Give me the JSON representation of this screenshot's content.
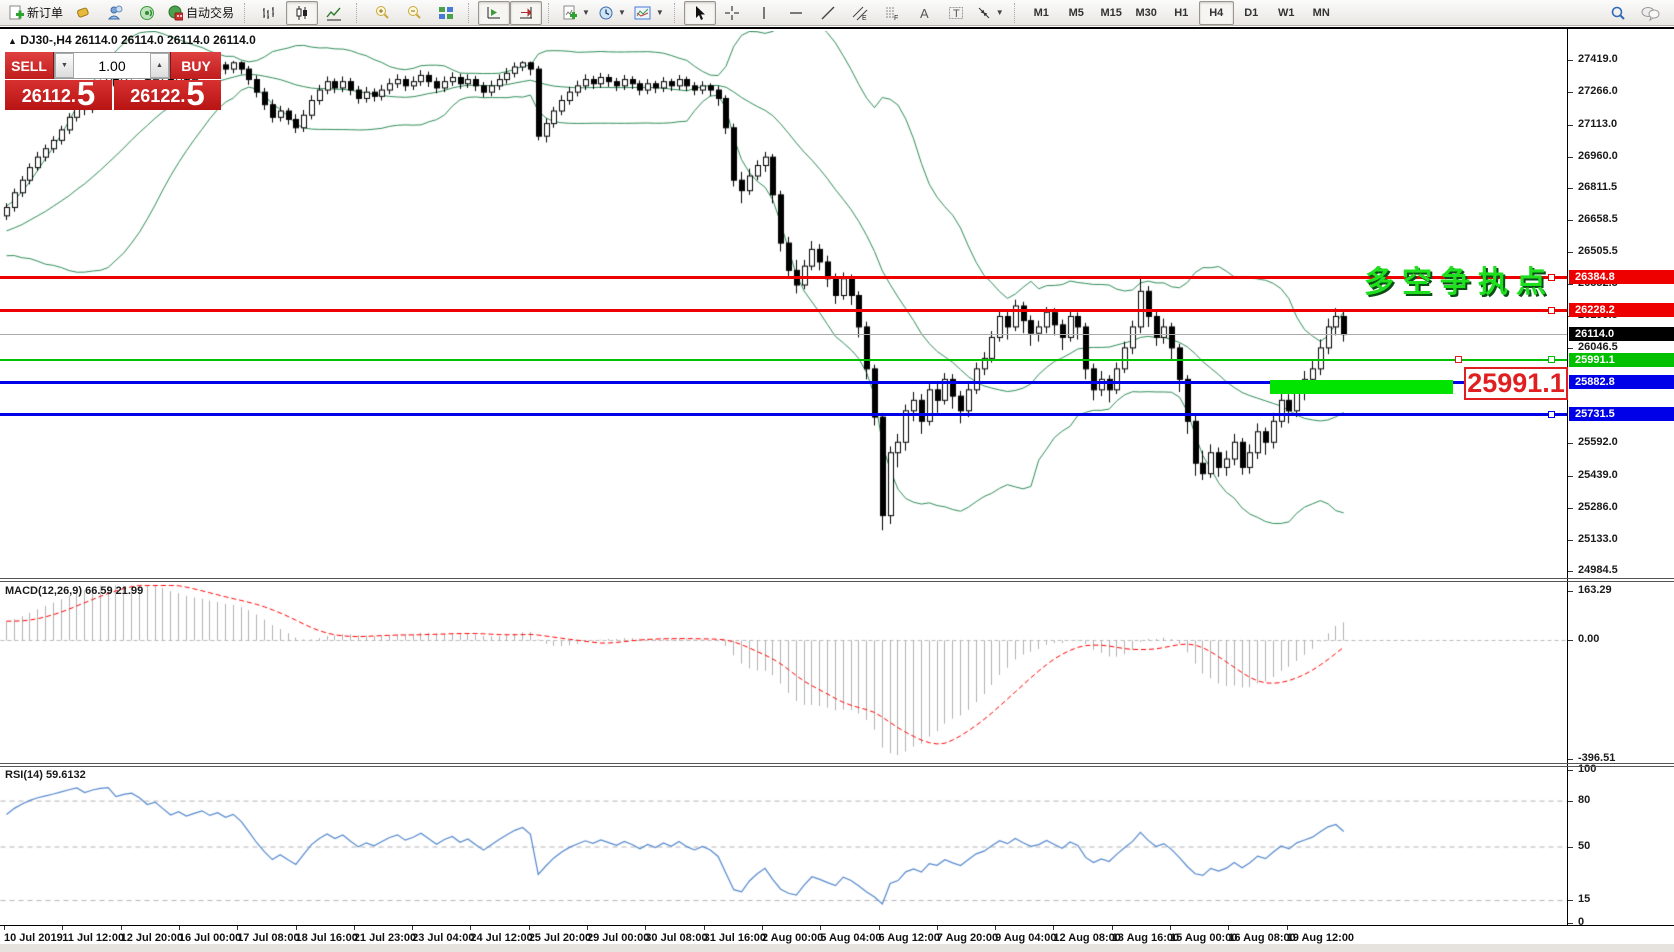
{
  "toolbar": {
    "new_order_label": "新订单",
    "autotrading_label": "自动交易",
    "timeframes": [
      "M1",
      "M5",
      "M15",
      "M30",
      "H1",
      "H4",
      "D1",
      "W1",
      "MN"
    ],
    "active_timeframe": "H4"
  },
  "trade_panel": {
    "sell_label": "SELL",
    "buy_label": "BUY",
    "volume": "1.00",
    "sell_price_main": "26112.",
    "sell_price_big": "5",
    "buy_price_main": "26122.",
    "buy_price_big": "5"
  },
  "chart": {
    "title_text": "DJ30-,H4  26114.0 26114.0 26114.0 26114.0",
    "collapse_arrow": "▲",
    "annotation": "多空争执点",
    "callout_label": "25991.1",
    "current_price": {
      "price": 26114.0,
      "label": "26114.0",
      "color": "#000000"
    },
    "lines": [
      {
        "price": 26384.8,
        "label": "26384.8",
        "color": "#ee0000",
        "thickness": 3
      },
      {
        "price": 26228.2,
        "label": "26228.2",
        "color": "#ee0000",
        "thickness": 3
      },
      {
        "price": 25991.1,
        "label": "25991.1",
        "color": "#00c000",
        "thickness": 2
      },
      {
        "price": 25882.8,
        "label": "25882.8",
        "color": "#0000e8",
        "thickness": 3
      },
      {
        "price": 25731.5,
        "label": "25731.5",
        "color": "#0000e8",
        "thickness": 3
      }
    ],
    "price_ticks": [
      "27419.0",
      "27266.0",
      "27113.0",
      "26960.0",
      "26811.5",
      "26658.5",
      "26505.5",
      "26352.5",
      "26199.5",
      "26046.5",
      "25592.0",
      "25439.0",
      "25286.0",
      "25133.0",
      "24984.5"
    ],
    "time_ticks": [
      "10 Jul 2019",
      "11 Jul 12:00",
      "12 Jul 20:00",
      "16 Jul 00:00",
      "17 Jul 08:00",
      "18 Jul 16:00",
      "21 Jul 23:00",
      "23 Jul 04:00",
      "24 Jul 12:00",
      "25 Jul 20:00",
      "29 Jul 00:00",
      "30 Jul 08:00",
      "31 Jul 16:00",
      "2 Aug 00:00",
      "5 Aug 04:00",
      "6 Aug 12:00",
      "7 Aug 20:00",
      "9 Aug 04:00",
      "12 Aug 08:00",
      "13 Aug 16:00",
      "15 Aug 00:00",
      "16 Aug 08:00",
      "19 Aug 12:00"
    ]
  },
  "macd_panel": {
    "label": "MACD(12,26,9) 66.59 21.99",
    "ticks": [
      {
        "v": 163.29,
        "label": "163.29"
      },
      {
        "v": 0,
        "label": "0.00"
      },
      {
        "v": -396.51,
        "label": "-396.51"
      }
    ]
  },
  "rsi_panel": {
    "label": "RSI(14) 59.6132",
    "ticks": [
      {
        "v": 100,
        "label": "100"
      },
      {
        "v": 80,
        "label": "80"
      },
      {
        "v": 50,
        "label": "50"
      },
      {
        "v": 15,
        "label": "15"
      },
      {
        "v": 0,
        "label": "0"
      }
    ],
    "levels": [
      80,
      50,
      15
    ]
  },
  "chart_data": {
    "type": "candlestick",
    "symbol": "DJ30-",
    "timeframe": "H4",
    "indicators": [
      "Bollinger Bands(20,2)",
      "MACD(12,26,9)",
      "RSI(14)"
    ],
    "price_axis_range": [
      24900,
      27560
    ],
    "macd_axis_range": [
      -406,
      193
    ],
    "rsi_axis_range": [
      0,
      100
    ],
    "warmup_closes": [
      26350,
      26380,
      26420,
      26390,
      26440,
      26480,
      26450,
      26500,
      26530,
      26490,
      26540,
      26580,
      26550,
      26600,
      26640,
      26610,
      26650,
      26620,
      26660,
      26640,
      26600,
      26630,
      26610,
      26650,
      26660,
      26680
    ],
    "candles": [
      [
        26680,
        26740,
        26660,
        26720
      ],
      [
        26720,
        26810,
        26700,
        26790
      ],
      [
        26790,
        26870,
        26770,
        26850
      ],
      [
        26850,
        26930,
        26830,
        26910
      ],
      [
        26910,
        26985,
        26895,
        26960
      ],
      [
        26960,
        27020,
        26940,
        27000
      ],
      [
        27000,
        27060,
        26980,
        27040
      ],
      [
        27040,
        27110,
        27020,
        27090
      ],
      [
        27090,
        27170,
        27070,
        27150
      ],
      [
        27150,
        27230,
        27130,
        27210
      ],
      [
        27210,
        27235,
        27160,
        27190
      ],
      [
        27190,
        27280,
        27170,
        27260
      ],
      [
        27260,
        27330,
        27240,
        27310
      ],
      [
        27310,
        27360,
        27280,
        27340
      ],
      [
        27340,
        27355,
        27275,
        27300
      ],
      [
        27300,
        27370,
        27280,
        27350
      ],
      [
        27350,
        27400,
        27330,
        27380
      ],
      [
        27380,
        27400,
        27335,
        27360
      ],
      [
        27360,
        27385,
        27305,
        27330
      ],
      [
        27330,
        27390,
        27310,
        27370
      ],
      [
        27370,
        27390,
        27320,
        27340
      ],
      [
        27340,
        27365,
        27285,
        27310
      ],
      [
        27310,
        27370,
        27290,
        27350
      ],
      [
        27350,
        27372,
        27305,
        27330
      ],
      [
        27330,
        27380,
        27310,
        27360
      ],
      [
        27360,
        27410,
        27340,
        27390
      ],
      [
        27390,
        27408,
        27345,
        27370
      ],
      [
        27370,
        27418,
        27350,
        27400
      ],
      [
        27400,
        27415,
        27355,
        27380
      ],
      [
        27380,
        27419,
        27360,
        27410
      ],
      [
        27410,
        27417,
        27355,
        27380
      ],
      [
        27380,
        27395,
        27305,
        27330
      ],
      [
        27330,
        27350,
        27245,
        27270
      ],
      [
        27270,
        27290,
        27185,
        27210
      ],
      [
        27210,
        27235,
        27125,
        27150
      ],
      [
        27150,
        27205,
        27130,
        27180
      ],
      [
        27180,
        27195,
        27115,
        27140
      ],
      [
        27140,
        27165,
        27075,
        27100
      ],
      [
        27100,
        27185,
        27080,
        27160
      ],
      [
        27160,
        27255,
        27140,
        27230
      ],
      [
        27230,
        27305,
        27210,
        27280
      ],
      [
        27280,
        27345,
        27260,
        27320
      ],
      [
        27320,
        27335,
        27265,
        27290
      ],
      [
        27290,
        27345,
        27270,
        27320
      ],
      [
        27320,
        27338,
        27255,
        27280
      ],
      [
        27280,
        27300,
        27215,
        27240
      ],
      [
        27240,
        27295,
        27220,
        27270
      ],
      [
        27270,
        27288,
        27225,
        27250
      ],
      [
        27250,
        27305,
        27230,
        27280
      ],
      [
        27280,
        27335,
        27260,
        27310
      ],
      [
        27310,
        27355,
        27290,
        27330
      ],
      [
        27330,
        27348,
        27275,
        27300
      ],
      [
        27300,
        27345,
        27280,
        27320
      ],
      [
        27320,
        27375,
        27300,
        27350
      ],
      [
        27350,
        27368,
        27295,
        27320
      ],
      [
        27320,
        27340,
        27265,
        27290
      ],
      [
        27290,
        27345,
        27270,
        27320
      ],
      [
        27320,
        27365,
        27300,
        27340
      ],
      [
        27340,
        27358,
        27285,
        27310
      ],
      [
        27310,
        27355,
        27290,
        27330
      ],
      [
        27330,
        27348,
        27275,
        27300
      ],
      [
        27300,
        27318,
        27245,
        27270
      ],
      [
        27270,
        27325,
        27250,
        27300
      ],
      [
        27300,
        27355,
        27280,
        27330
      ],
      [
        27330,
        27385,
        27310,
        27360
      ],
      [
        27360,
        27412,
        27340,
        27390
      ],
      [
        27390,
        27418,
        27370,
        27410
      ],
      [
        27410,
        27416,
        27350,
        27380
      ],
      [
        27380,
        27395,
        27040,
        27060
      ],
      [
        27060,
        27145,
        27030,
        27120
      ],
      [
        27120,
        27200,
        27100,
        27180
      ],
      [
        27180,
        27255,
        27160,
        27230
      ],
      [
        27230,
        27295,
        27210,
        27270
      ],
      [
        27270,
        27325,
        27250,
        27300
      ],
      [
        27300,
        27355,
        27280,
        27330
      ],
      [
        27330,
        27348,
        27285,
        27310
      ],
      [
        27310,
        27362,
        27290,
        27340
      ],
      [
        27340,
        27356,
        27295,
        27320
      ],
      [
        27320,
        27338,
        27275,
        27300
      ],
      [
        27300,
        27352,
        27280,
        27330
      ],
      [
        27330,
        27346,
        27285,
        27310
      ],
      [
        27310,
        27326,
        27255,
        27280
      ],
      [
        27280,
        27332,
        27260,
        27310
      ],
      [
        27310,
        27324,
        27265,
        27290
      ],
      [
        27290,
        27342,
        27270,
        27320
      ],
      [
        27320,
        27334,
        27275,
        27300
      ],
      [
        27300,
        27352,
        27280,
        27330
      ],
      [
        27330,
        27344,
        27275,
        27300
      ],
      [
        27300,
        27318,
        27255,
        27280
      ],
      [
        27280,
        27322,
        27260,
        27300
      ],
      [
        27300,
        27312,
        27250,
        27280
      ],
      [
        27280,
        27300,
        27205,
        27240
      ],
      [
        27240,
        27255,
        27070,
        27100
      ],
      [
        27100,
        27120,
        26820,
        26850
      ],
      [
        26850,
        26890,
        26740,
        26800
      ],
      [
        26800,
        26905,
        26780,
        26870
      ],
      [
        26870,
        26945,
        26850,
        26920
      ],
      [
        26920,
        26985,
        26890,
        26960
      ],
      [
        26960,
        26975,
        26740,
        26780
      ],
      [
        26780,
        26800,
        26510,
        26550
      ],
      [
        26550,
        26580,
        26380,
        26420
      ],
      [
        26420,
        26470,
        26310,
        26350
      ],
      [
        26350,
        26470,
        26330,
        26440
      ],
      [
        26440,
        26560,
        26420,
        26520
      ],
      [
        26520,
        26545,
        26420,
        26460
      ],
      [
        26460,
        26490,
        26340,
        26380
      ],
      [
        26380,
        26405,
        26260,
        26300
      ],
      [
        26300,
        26410,
        26280,
        26380
      ],
      [
        26380,
        26400,
        26255,
        26300
      ],
      [
        26300,
        26320,
        26100,
        26150
      ],
      [
        26150,
        26175,
        25900,
        25950
      ],
      [
        25950,
        25970,
        25680,
        25720
      ],
      [
        25720,
        25740,
        25180,
        25250
      ],
      [
        25250,
        25580,
        25210,
        25550
      ],
      [
        25550,
        25640,
        25480,
        25600
      ],
      [
        25600,
        25780,
        25560,
        25750
      ],
      [
        25750,
        25840,
        25700,
        25800
      ],
      [
        25800,
        25830,
        25640,
        25700
      ],
      [
        25700,
        25880,
        25680,
        25850
      ],
      [
        25850,
        25890,
        25740,
        25800
      ],
      [
        25800,
        25930,
        25780,
        25900
      ],
      [
        25900,
        25925,
        25760,
        25820
      ],
      [
        25820,
        25845,
        25690,
        25750
      ],
      [
        25750,
        25880,
        25720,
        25850
      ],
      [
        25850,
        25980,
        25830,
        25950
      ],
      [
        25950,
        26030,
        25920,
        26000
      ],
      [
        26000,
        26130,
        25980,
        26100
      ],
      [
        26100,
        26230,
        26080,
        26200
      ],
      [
        26200,
        26225,
        26090,
        26150
      ],
      [
        26150,
        26280,
        26130,
        26250
      ],
      [
        26250,
        26270,
        26120,
        26180
      ],
      [
        26180,
        26205,
        26060,
        26120
      ],
      [
        26120,
        26180,
        26080,
        26150
      ],
      [
        26150,
        26245,
        26120,
        26220
      ],
      [
        26220,
        26240,
        26110,
        26160
      ],
      [
        26160,
        26185,
        26040,
        26100
      ],
      [
        26100,
        26230,
        26080,
        26200
      ],
      [
        26200,
        26220,
        26090,
        26150
      ],
      [
        26150,
        26170,
        25900,
        25950
      ],
      [
        25950,
        25975,
        25800,
        25850
      ],
      [
        25850,
        25940,
        25820,
        25900
      ],
      [
        25900,
        25920,
        25790,
        25850
      ],
      [
        25850,
        25980,
        25830,
        25950
      ],
      [
        25950,
        26080,
        25930,
        26050
      ],
      [
        26050,
        26180,
        26020,
        26150
      ],
      [
        26150,
        26384,
        26120,
        26320
      ],
      [
        26320,
        26345,
        26150,
        26200
      ],
      [
        26200,
        26230,
        26060,
        26100
      ],
      [
        26100,
        26190,
        26070,
        26150
      ],
      [
        26150,
        26170,
        25990,
        26050
      ],
      [
        26050,
        26070,
        25840,
        25900
      ],
      [
        25900,
        25920,
        25640,
        25700
      ],
      [
        25700,
        25730,
        25440,
        25500
      ],
      [
        25500,
        25560,
        25420,
        25450
      ],
      [
        25450,
        25590,
        25430,
        25550
      ],
      [
        25550,
        25575,
        25435,
        25480
      ],
      [
        25480,
        25560,
        25440,
        25520
      ],
      [
        25520,
        25640,
        25490,
        25600
      ],
      [
        25600,
        25620,
        25445,
        25480
      ],
      [
        25480,
        25590,
        25450,
        25550
      ],
      [
        25550,
        25690,
        25520,
        25650
      ],
      [
        25650,
        25670,
        25540,
        25600
      ],
      [
        25600,
        25740,
        25570,
        25700
      ],
      [
        25700,
        25840,
        25670,
        25800
      ],
      [
        25800,
        25830,
        25690,
        25750
      ],
      [
        25750,
        25890,
        25720,
        25850
      ],
      [
        25850,
        25940,
        25800,
        25900
      ],
      [
        25900,
        25990,
        25860,
        25950
      ],
      [
        25950,
        26090,
        25920,
        26050
      ],
      [
        26050,
        26190,
        26020,
        26150
      ],
      [
        26150,
        26240,
        26110,
        26200
      ],
      [
        26200,
        26230,
        26080,
        26114
      ]
    ]
  }
}
